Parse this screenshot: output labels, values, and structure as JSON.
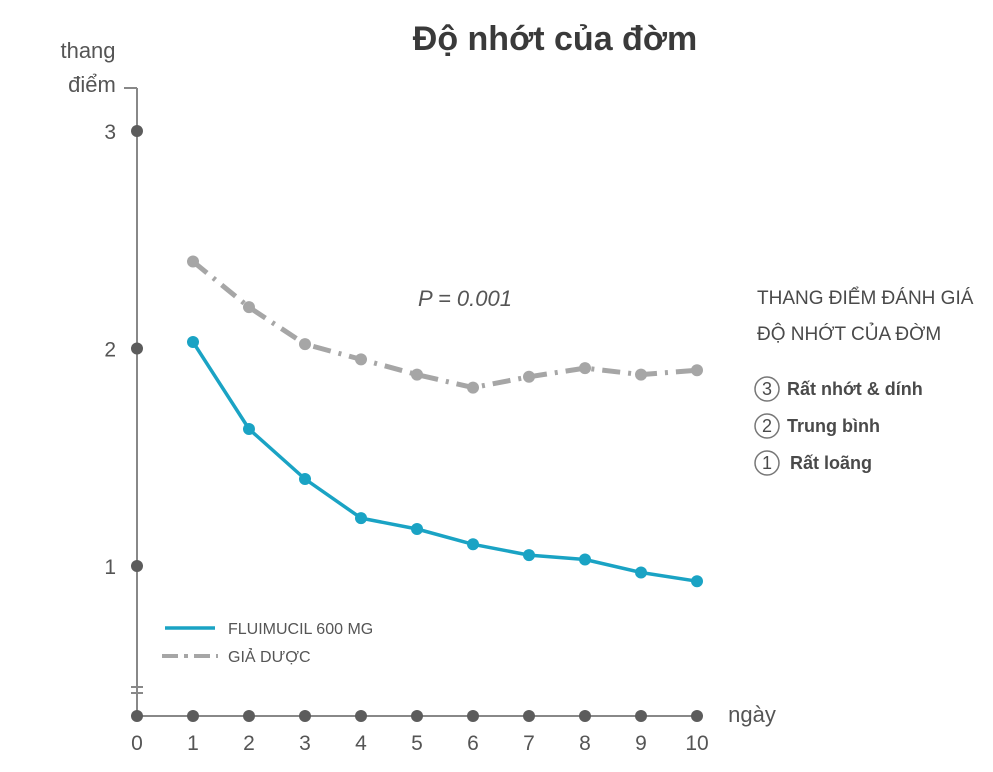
{
  "chart_data": {
    "type": "line",
    "title": "Độ nhớt của đờm",
    "ylabel_line1": "thang",
    "ylabel_line2": "điểm",
    "xlabel": "ngày",
    "x": [
      1,
      2,
      3,
      4,
      5,
      6,
      7,
      8,
      9,
      10
    ],
    "x_ticks": [
      "0",
      "1",
      "2",
      "3",
      "4",
      "5",
      "6",
      "7",
      "8",
      "9",
      "10"
    ],
    "y_ticks": [
      "1",
      "2",
      "3"
    ],
    "xlim": [
      0,
      10
    ],
    "ylim": [
      0.45,
      3.2
    ],
    "series": [
      {
        "name": "FLUIMUCIL 600 MG",
        "color": "#1aa3c4",
        "style": "solid",
        "values": [
          2.03,
          1.63,
          1.4,
          1.22,
          1.17,
          1.1,
          1.05,
          1.03,
          0.97,
          0.93
        ]
      },
      {
        "name": "GIẢ DƯỢC",
        "color": "#a6a6a6",
        "style": "dash-dot",
        "values": [
          2.4,
          2.19,
          2.02,
          1.95,
          1.88,
          1.82,
          1.87,
          1.91,
          1.88,
          1.9
        ]
      }
    ],
    "annotation": "P = 0.001",
    "grid": false,
    "legend_position": "bottom-left"
  },
  "scale_panel": {
    "title_line1": "THANG ĐIỂM ĐÁNH GIÁ",
    "title_line2": "ĐỘ NHỚT CỦA ĐỜM",
    "items": [
      {
        "number": "3",
        "label": "Rất nhớt & dính"
      },
      {
        "number": "2",
        "label": "Trung bình"
      },
      {
        "number": "1",
        "label": "Rất loãng"
      }
    ]
  },
  "colors": {
    "axis": "#888888",
    "axis_dot": "#5c5c5c",
    "text": "#555555"
  }
}
